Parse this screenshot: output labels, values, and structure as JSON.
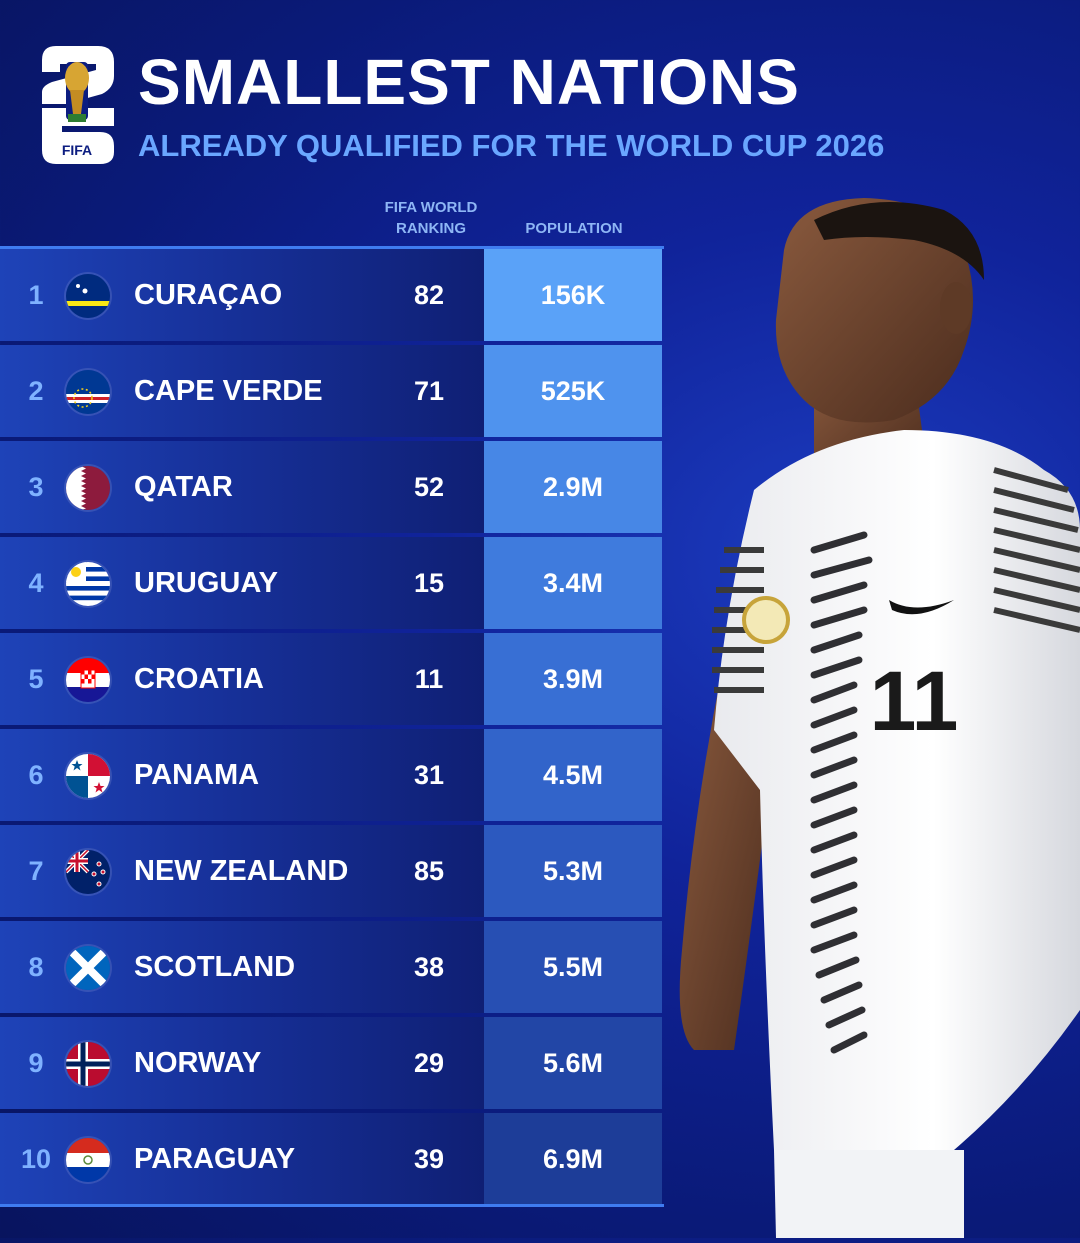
{
  "header": {
    "title": "SMALLEST NATIONS",
    "subtitle": "ALREADY QUALIFIED FOR THE WORLD CUP 2026",
    "logo_text": "FIFA"
  },
  "columns": {
    "ranking_line1": "FIFA WORLD",
    "ranking_line2": "RANKING",
    "population": "POPULATION"
  },
  "rows": [
    {
      "num": "1",
      "country": "CURAÇAO",
      "rank": "82",
      "population": "156K",
      "flag": "curacao-flag-icon",
      "pop_color": "#5aa2f8"
    },
    {
      "num": "2",
      "country": "CAPE VERDE",
      "rank": "71",
      "population": "525K",
      "flag": "cape-verde-flag-icon",
      "pop_color": "#4f93ee"
    },
    {
      "num": "3",
      "country": "QATAR",
      "rank": "52",
      "population": "2.9M",
      "flag": "qatar-flag-icon",
      "pop_color": "#4787e6"
    },
    {
      "num": "4",
      "country": "URUGUAY",
      "rank": "15",
      "population": "3.4M",
      "flag": "uruguay-flag-icon",
      "pop_color": "#3f7bdd"
    },
    {
      "num": "5",
      "country": "CROATIA",
      "rank": "11",
      "population": "3.9M",
      "flag": "croatia-flag-icon",
      "pop_color": "#386fd4"
    },
    {
      "num": "6",
      "country": "PANAMA",
      "rank": "31",
      "population": "4.5M",
      "flag": "panama-flag-icon",
      "pop_color": "#3264ca"
    },
    {
      "num": "7",
      "country": "NEW ZEALAND",
      "rank": "85",
      "population": "5.3M",
      "flag": "new-zealand-flag-icon",
      "pop_color": "#2c59bf"
    },
    {
      "num": "8",
      "country": "SCOTLAND",
      "rank": "38",
      "population": "5.5M",
      "flag": "scotland-flag-icon",
      "pop_color": "#274fb3"
    },
    {
      "num": "9",
      "country": "NORWAY",
      "rank": "29",
      "population": "5.6M",
      "flag": "norway-flag-icon",
      "pop_color": "#2246a6"
    },
    {
      "num": "10",
      "country": "PARAGUAY",
      "rank": "39",
      "population": "6.9M",
      "flag": "paraguay-flag-icon",
      "pop_color": "#1d3d98"
    }
  ],
  "player_jersey_number": "11",
  "colors": {
    "accent": "#3f7cf0",
    "subtitle": "#6aa7ff",
    "background": "#0a1a78"
  }
}
